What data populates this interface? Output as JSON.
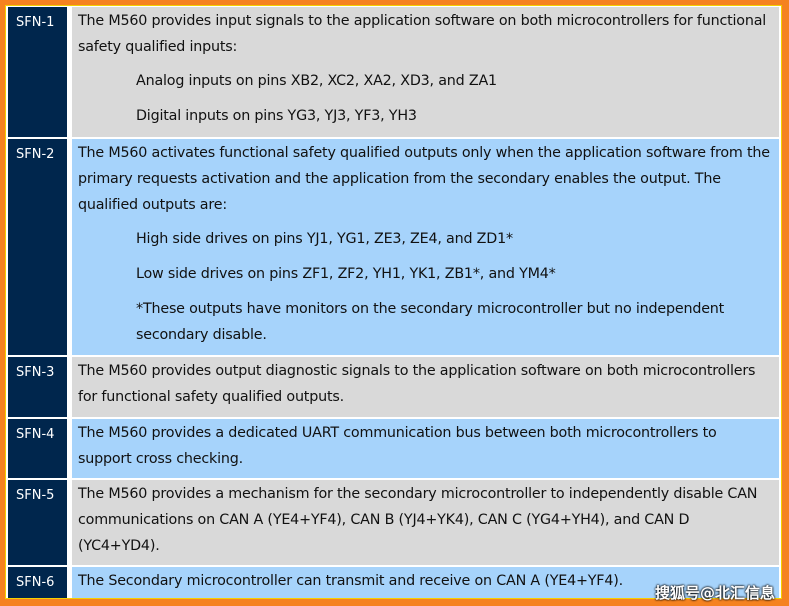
{
  "colors": {
    "border": "#f58220",
    "id_cell": "#00264d",
    "gray_row": "#d9d9d9",
    "blue_row": "#a6d3fb"
  },
  "rows": [
    {
      "id": "SFN-1",
      "text": "The M560 provides input signals to the application software on both microcontrollers for functional safety qualified inputs:",
      "items": [
        "Analog inputs on pins XB2, XC2, XA2, XD3, and ZA1",
        "Digital inputs on pins YG3, YJ3, YF3, YH3"
      ]
    },
    {
      "id": "SFN-2",
      "text": "The M560 activates functional safety qualified outputs only when the application software from the primary requests activation and the application from the secondary enables the output. The qualified outputs are:",
      "items": [
        "High side drives on pins YJ1, YG1, ZE3, ZE4, and ZD1*",
        "Low side drives on pins ZF1, ZF2, YH1, YK1, ZB1*, and YM4*",
        "*These outputs have monitors on the secondary microcontroller but no independent secondary disable."
      ]
    },
    {
      "id": "SFN-3",
      "text": "The M560 provides output diagnostic signals to the application software on both microcontrollers for functional safety qualified outputs."
    },
    {
      "id": "SFN-4",
      "text": "The M560 provides a dedicated UART communication bus between both microcontrollers to support cross checking."
    },
    {
      "id": "SFN-5",
      "text": "The M560 provides a mechanism for the secondary microcontroller to independently disable CAN communications on CAN A (YE4+YF4), CAN B (YJ4+YK4), CAN C (YG4+YH4), and CAN D (YC4+YD4)."
    },
    {
      "id": "SFN-6",
      "text": "The Secondary microcontroller can transmit and receive on CAN A (YE4+YF4)."
    }
  ],
  "watermark": "搜狐号@北汇信息"
}
